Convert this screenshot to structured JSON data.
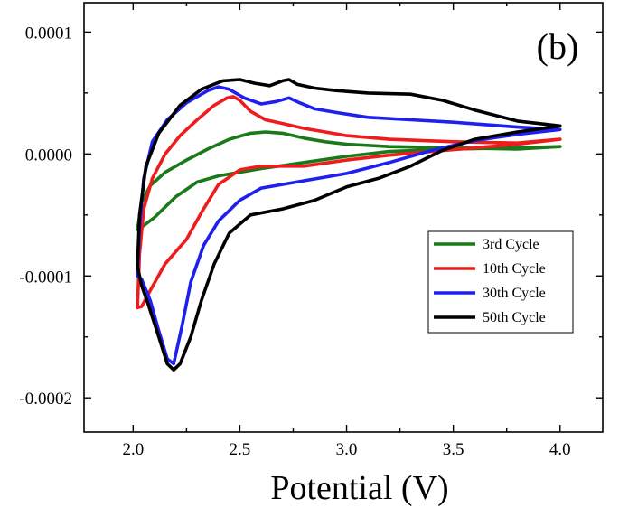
{
  "chart_data": {
    "type": "line",
    "panel_label": "(b)",
    "xlabel": "Potential (V)",
    "ylabel": "",
    "xlim": [
      1.77,
      4.2
    ],
    "ylim": [
      -0.000228,
      0.000124
    ],
    "x_ticks": [
      {
        "value": 2.0,
        "label": "2.0"
      },
      {
        "value": 2.5,
        "label": "2.5"
      },
      {
        "value": 3.0,
        "label": "3.0"
      },
      {
        "value": 3.5,
        "label": "3.5"
      },
      {
        "value": 4.0,
        "label": "4.0"
      }
    ],
    "y_ticks": [
      {
        "value": 0.0001,
        "label": "0.0001"
      },
      {
        "value": 0.0,
        "label": "0.0000"
      },
      {
        "value": -0.0001,
        "label": "-0.0001"
      },
      {
        "value": -0.0002,
        "label": "-0.0002"
      }
    ],
    "grid": false,
    "legend_position": "lower-right",
    "series": [
      {
        "name": "3rd Cycle",
        "color": "#1a7a1a",
        "points": [
          [
            2.02,
            -6.2e-05
          ],
          [
            2.04,
            -4e-05
          ],
          [
            2.08,
            -2.6e-05
          ],
          [
            2.15,
            -1.5e-05
          ],
          [
            2.25,
            -5e-06
          ],
          [
            2.35,
            4e-06
          ],
          [
            2.45,
            1.2e-05
          ],
          [
            2.55,
            1.7e-05
          ],
          [
            2.62,
            1.8e-05
          ],
          [
            2.7,
            1.7e-05
          ],
          [
            2.8,
            1.3e-05
          ],
          [
            2.9,
            1e-05
          ],
          [
            3.0,
            8e-06
          ],
          [
            3.2,
            6e-06
          ],
          [
            3.5,
            5e-06
          ],
          [
            3.8,
            4e-06
          ],
          [
            4.0,
            6e-06
          ],
          [
            3.8,
            5e-06
          ],
          [
            3.5,
            4e-06
          ],
          [
            3.2,
            2e-06
          ],
          [
            3.0,
            -2e-06
          ],
          [
            2.8,
            -7e-06
          ],
          [
            2.6,
            -1.2e-05
          ],
          [
            2.4,
            -1.8e-05
          ],
          [
            2.3,
            -2.3e-05
          ],
          [
            2.2,
            -3.5e-05
          ],
          [
            2.1,
            -5.2e-05
          ],
          [
            2.04,
            -6e-05
          ],
          [
            2.02,
            -6.2e-05
          ]
        ]
      },
      {
        "name": "10th Cycle",
        "color": "#ee1c1c",
        "points": [
          [
            2.02,
            -0.000126
          ],
          [
            2.03,
            -8.2e-05
          ],
          [
            2.05,
            -4.5e-05
          ],
          [
            2.09,
            -2e-05
          ],
          [
            2.15,
            0.0
          ],
          [
            2.22,
            1.5e-05
          ],
          [
            2.3,
            2.8e-05
          ],
          [
            2.38,
            4e-05
          ],
          [
            2.44,
            4.6e-05
          ],
          [
            2.47,
            4.7e-05
          ],
          [
            2.5,
            4.4e-05
          ],
          [
            2.55,
            3.5e-05
          ],
          [
            2.62,
            2.8e-05
          ],
          [
            2.7,
            2.5e-05
          ],
          [
            2.8,
            2.1e-05
          ],
          [
            2.9,
            1.8e-05
          ],
          [
            3.0,
            1.5e-05
          ],
          [
            3.2,
            1.2e-05
          ],
          [
            3.5,
            1e-05
          ],
          [
            3.8,
            9e-06
          ],
          [
            4.0,
            1.2e-05
          ],
          [
            3.8,
            8e-06
          ],
          [
            3.6,
            5e-06
          ],
          [
            3.4,
            2e-06
          ],
          [
            3.2,
            -1e-06
          ],
          [
            3.0,
            -5e-06
          ],
          [
            2.8,
            -1e-05
          ],
          [
            2.6,
            -1e-05
          ],
          [
            2.5,
            -1.3e-05
          ],
          [
            2.4,
            -2.5e-05
          ],
          [
            2.32,
            -4.8e-05
          ],
          [
            2.25,
            -7e-05
          ],
          [
            2.15,
            -9e-05
          ],
          [
            2.08,
            -0.000112
          ],
          [
            2.04,
            -0.000125
          ],
          [
            2.02,
            -0.000126
          ]
        ]
      },
      {
        "name": "30th Cycle",
        "color": "#1f1fee",
        "points": [
          [
            2.02,
            -0.0001
          ],
          [
            2.03,
            -6e-05
          ],
          [
            2.05,
            -2e-05
          ],
          [
            2.09,
            1e-05
          ],
          [
            2.16,
            2.8e-05
          ],
          [
            2.25,
            4.2e-05
          ],
          [
            2.35,
            5.2e-05
          ],
          [
            2.4,
            5.5e-05
          ],
          [
            2.45,
            5.3e-05
          ],
          [
            2.52,
            4.6e-05
          ],
          [
            2.6,
            4.1e-05
          ],
          [
            2.67,
            4.3e-05
          ],
          [
            2.73,
            4.6e-05
          ],
          [
            2.78,
            4.2e-05
          ],
          [
            2.85,
            3.7e-05
          ],
          [
            2.95,
            3.4e-05
          ],
          [
            3.1,
            3e-05
          ],
          [
            3.3,
            2.8e-05
          ],
          [
            3.5,
            2.6e-05
          ],
          [
            3.8,
            2.2e-05
          ],
          [
            4.0,
            2e-05
          ],
          [
            3.8,
            1.6e-05
          ],
          [
            3.6,
            1.1e-05
          ],
          [
            3.4,
            3e-06
          ],
          [
            3.2,
            -7e-06
          ],
          [
            3.0,
            -1.6e-05
          ],
          [
            2.8,
            -2.2e-05
          ],
          [
            2.6,
            -2.8e-05
          ],
          [
            2.5,
            -3.8e-05
          ],
          [
            2.4,
            -5.5e-05
          ],
          [
            2.33,
            -7.5e-05
          ],
          [
            2.27,
            -0.000105
          ],
          [
            2.23,
            -0.00014
          ],
          [
            2.19,
            -0.000172
          ],
          [
            2.16,
            -0.000168
          ],
          [
            2.12,
            -0.000145
          ],
          [
            2.08,
            -0.00012
          ],
          [
            2.04,
            -0.000103
          ],
          [
            2.02,
            -0.0001
          ]
        ]
      },
      {
        "name": "50th Cycle",
        "color": "#000000",
        "points": [
          [
            2.02,
            -9.2e-05
          ],
          [
            2.03,
            -5e-05
          ],
          [
            2.06,
            -1e-05
          ],
          [
            2.12,
            1.7e-05
          ],
          [
            2.22,
            4e-05
          ],
          [
            2.32,
            5.3e-05
          ],
          [
            2.42,
            6e-05
          ],
          [
            2.5,
            6.1e-05
          ],
          [
            2.57,
            5.8e-05
          ],
          [
            2.64,
            5.6e-05
          ],
          [
            2.7,
            6e-05
          ],
          [
            2.73,
            6.1e-05
          ],
          [
            2.77,
            5.7e-05
          ],
          [
            2.85,
            5.4e-05
          ],
          [
            2.95,
            5.2e-05
          ],
          [
            3.1,
            5e-05
          ],
          [
            3.3,
            4.9e-05
          ],
          [
            3.45,
            4.4e-05
          ],
          [
            3.6,
            3.6e-05
          ],
          [
            3.8,
            2.7e-05
          ],
          [
            4.0,
            2.3e-05
          ],
          [
            3.8,
            1.8e-05
          ],
          [
            3.6,
            1.2e-05
          ],
          [
            3.45,
            3e-06
          ],
          [
            3.3,
            -1e-05
          ],
          [
            3.15,
            -2e-05
          ],
          [
            3.0,
            -2.7e-05
          ],
          [
            2.85,
            -3.8e-05
          ],
          [
            2.7,
            -4.5e-05
          ],
          [
            2.55,
            -5e-05
          ],
          [
            2.45,
            -6.5e-05
          ],
          [
            2.38,
            -9e-05
          ],
          [
            2.32,
            -0.00012
          ],
          [
            2.27,
            -0.00015
          ],
          [
            2.22,
            -0.000172
          ],
          [
            2.19,
            -0.000177
          ],
          [
            2.16,
            -0.000172
          ],
          [
            2.12,
            -0.00015
          ],
          [
            2.07,
            -0.000123
          ],
          [
            2.04,
            -0.000108
          ],
          [
            2.02,
            -9.2e-05
          ]
        ]
      }
    ]
  }
}
